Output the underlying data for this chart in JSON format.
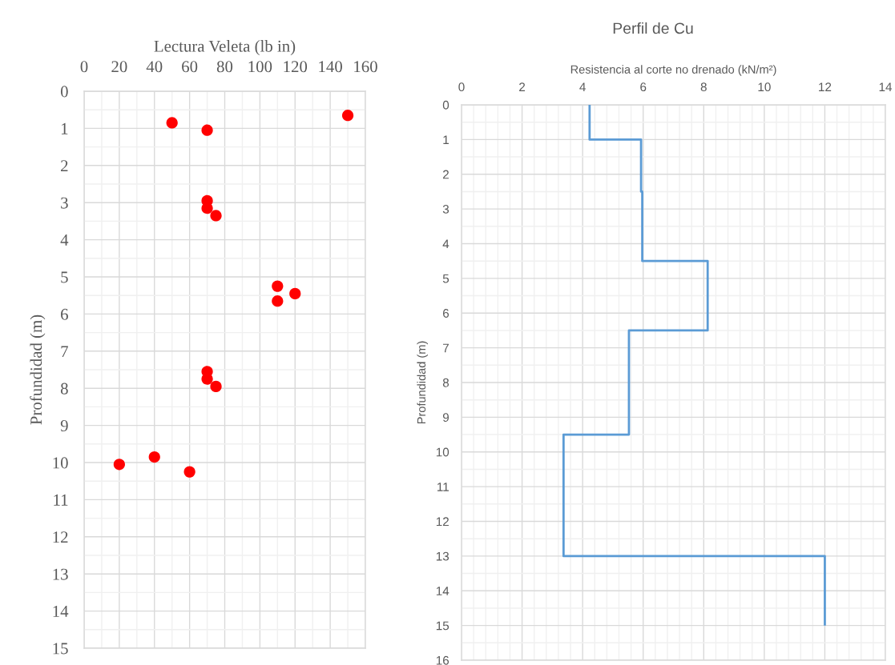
{
  "chart_data": [
    {
      "type": "scatter",
      "xlabel": "Lectura Veleta (lb in)",
      "ylabel": "Profundidad (m)",
      "series": [
        {
          "color": "#ff0000",
          "x": [
            150,
            50,
            70,
            70,
            70,
            75,
            110,
            120,
            110,
            70,
            70,
            75,
            40,
            20,
            60
          ],
          "values": [
            0.65,
            0.85,
            1.05,
            2.95,
            3.15,
            3.35,
            5.25,
            5.45,
            5.65,
            7.55,
            7.75,
            7.95,
            9.85,
            10.05,
            10.25
          ]
        }
      ],
      "marker": "circle",
      "xlim": [
        0,
        160
      ],
      "xticks": [
        0,
        20,
        40,
        60,
        80,
        100,
        120,
        140,
        160
      ],
      "ylim": [
        15,
        0
      ],
      "yticks": [
        0,
        1,
        2,
        3,
        4,
        5,
        6,
        7,
        8,
        9,
        10,
        11,
        12,
        13,
        14,
        15
      ],
      "grid": true
    },
    {
      "type": "line",
      "title": "Perfil de Cu",
      "xlabel": "Resistencia al corte no drenado (kN/m²)",
      "ylabel": "Profundidad (m)",
      "series": [
        {
          "color": "#5b9bd5",
          "x": [
            4.23,
            4.23,
            5.93,
            5.93,
            5.97,
            5.97,
            8.13,
            8.13,
            5.53,
            5.53,
            3.37,
            3.37,
            12,
            12
          ],
          "values": [
            0,
            1,
            1,
            2.5,
            2.5,
            4.5,
            4.5,
            6.5,
            6.5,
            9.5,
            9.5,
            13,
            13,
            15
          ]
        }
      ],
      "marker": "none",
      "line_style": "solid",
      "xlim": [
        0,
        14
      ],
      "xticks": [
        0,
        2,
        4,
        6,
        8,
        10,
        12,
        14
      ],
      "ylim": [
        16,
        0
      ],
      "yticks": [
        0,
        1,
        2,
        3,
        4,
        5,
        6,
        7,
        8,
        9,
        10,
        11,
        12,
        13,
        14,
        15,
        16
      ],
      "grid": true
    }
  ]
}
